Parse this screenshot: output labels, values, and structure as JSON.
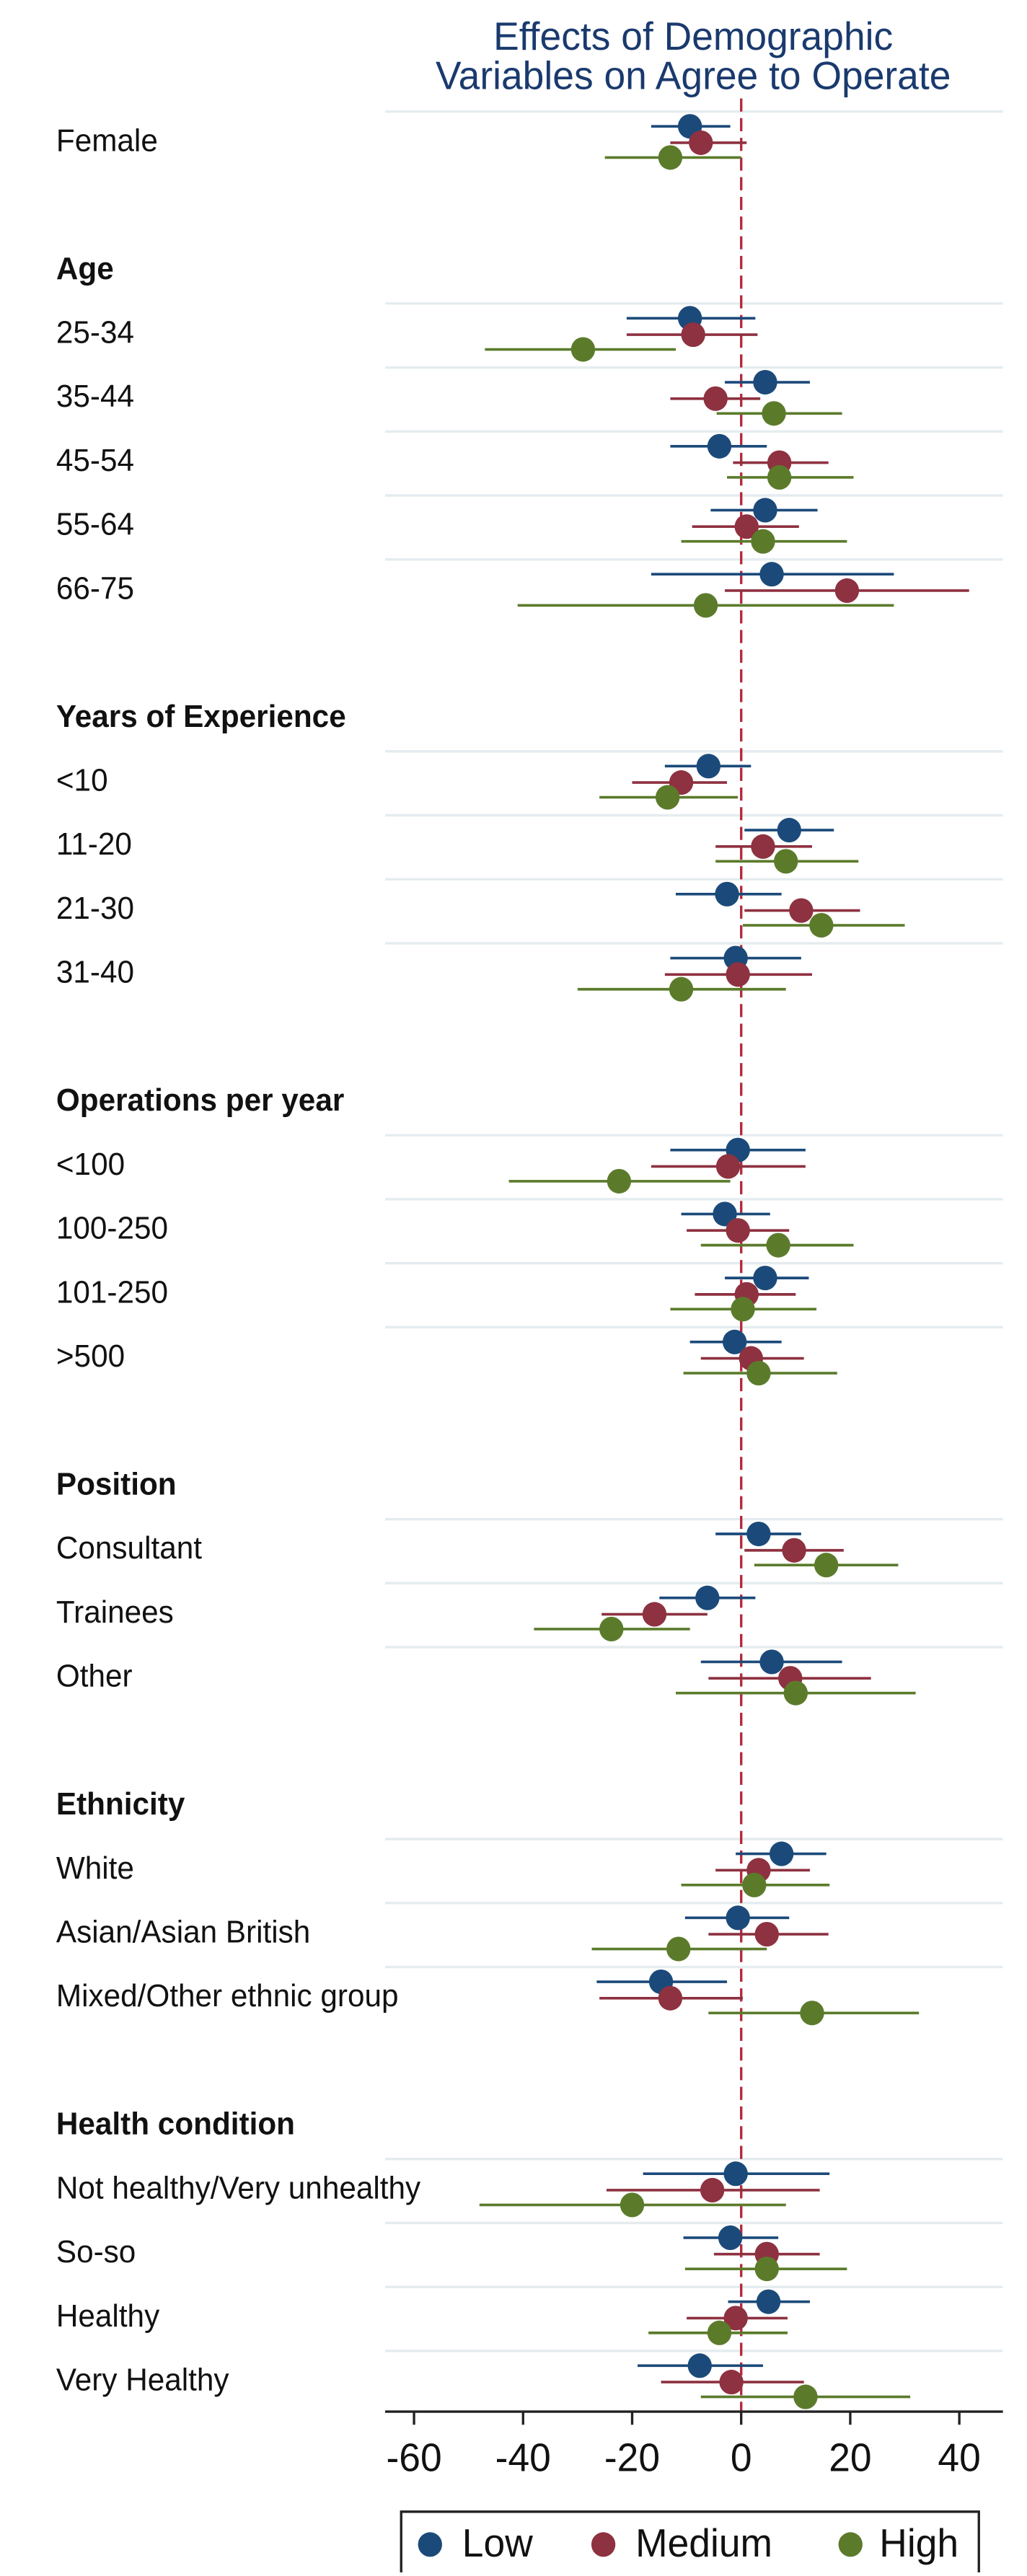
{
  "chart_data": {
    "type": "dot-errorbar",
    "title": [
      "Effects of Demographic",
      "Variables on Agree to Operate"
    ],
    "categories": [
      "Female",
      null,
      "Age",
      "25-34",
      "35-44",
      "45-54",
      "55-64",
      "66-75",
      null,
      "Years of Experience",
      "<10",
      "11-20",
      "21-30",
      "31-40",
      null,
      "Operations per year",
      "<100",
      "100-250",
      "101-250",
      ">500",
      null,
      "Position",
      "Consultant",
      "Trainees",
      "Other",
      null,
      "Ethnicity",
      "White",
      "Asian/Asian British",
      "Mixed/Other ethnic group",
      null,
      "Health condition",
      "Not healthy/Very unhealthy",
      "So-so",
      "Healthy",
      "Very Healthy"
    ],
    "series": [
      {
        "name": "Low",
        "color": "#1b4a7a",
        "values": [
          -9.4,
          null,
          null,
          -9.4,
          4.4,
          -4,
          4.4,
          5.6,
          null,
          null,
          -6,
          8.8,
          -2.6,
          -1,
          null,
          null,
          -0.6,
          -3,
          4.4,
          -1.2,
          null,
          null,
          3.2,
          -6.2,
          5.6,
          null,
          null,
          7.4,
          -0.6,
          -14.7,
          null,
          null,
          -1,
          -2,
          5,
          -7.6
        ],
        "lower": [
          -16.5,
          null,
          null,
          -21,
          -3,
          -13,
          -5.6,
          -16.5,
          null,
          null,
          -14,
          0.6,
          -12,
          -13,
          null,
          null,
          -13,
          -11,
          -3,
          -9.4,
          null,
          null,
          -4.7,
          -15,
          -7.4,
          null,
          null,
          -1,
          -10.3,
          -26.5,
          null,
          null,
          -18,
          -10.6,
          -2.4,
          -19
        ],
        "upper": [
          -2,
          null,
          null,
          2.6,
          12.6,
          4.7,
          14,
          28,
          null,
          null,
          1.8,
          17,
          7.4,
          11,
          null,
          null,
          11.8,
          5.3,
          12.4,
          7.4,
          null,
          null,
          11,
          2.6,
          18.5,
          null,
          null,
          15.6,
          8.8,
          -2.6,
          null,
          null,
          16.2,
          6.8,
          12.6,
          4
        ]
      },
      {
        "name": "Medium",
        "color": "#8e3140",
        "values": [
          -7.4,
          null,
          null,
          -8.8,
          -4.7,
          7,
          1,
          19.4,
          null,
          null,
          -11,
          4,
          11,
          -0.6,
          null,
          null,
          -2.4,
          -0.6,
          1,
          1.8,
          null,
          null,
          9.7,
          -15.9,
          9,
          null,
          null,
          3.2,
          4.7,
          -13,
          null,
          null,
          -5.3,
          4.7,
          -1,
          -1.8
        ],
        "lower": [
          -13,
          null,
          null,
          -21,
          -13,
          -1.5,
          -9,
          -3,
          null,
          null,
          -20,
          -4.7,
          0.6,
          -14,
          null,
          null,
          -16.5,
          -10,
          -8.5,
          -7.4,
          null,
          null,
          0.6,
          -25.6,
          -6,
          null,
          null,
          -4.7,
          -6,
          -26,
          null,
          null,
          -24.7,
          -5,
          -10,
          -14.7
        ],
        "upper": [
          1,
          null,
          null,
          3,
          3.5,
          16,
          10.6,
          41.8,
          null,
          null,
          -2.6,
          13,
          21.8,
          13,
          null,
          null,
          11.8,
          8.8,
          10,
          11.5,
          null,
          null,
          18.8,
          -6.2,
          23.8,
          null,
          null,
          12.6,
          16,
          0.3,
          null,
          null,
          14.4,
          14.4,
          8.5,
          11.5
        ]
      },
      {
        "name": "High",
        "color": "#5b7b2b",
        "values": [
          -13,
          null,
          null,
          -29,
          6,
          7,
          4,
          -6.5,
          null,
          null,
          -13.5,
          8.2,
          14.7,
          -11,
          null,
          null,
          -22.4,
          6.8,
          0.3,
          3.2,
          null,
          null,
          15.6,
          -23.8,
          10,
          null,
          null,
          2.4,
          -11.5,
          13,
          null,
          null,
          -20,
          4.7,
          -4,
          11.8
        ],
        "lower": [
          -25,
          null,
          null,
          -47,
          -4.5,
          -2.6,
          -11,
          -41,
          null,
          null,
          -26,
          -4.7,
          0.3,
          -30,
          null,
          null,
          -42.6,
          -7.4,
          -13,
          -10.6,
          null,
          null,
          2.4,
          -38,
          -12,
          null,
          null,
          -11,
          -27.4,
          -6,
          null,
          null,
          -48,
          -10.3,
          -17,
          -7.4
        ],
        "upper": [
          0,
          null,
          null,
          -12,
          18.5,
          20.6,
          19.4,
          28,
          null,
          null,
          -0.6,
          21.5,
          30,
          8.2,
          null,
          null,
          -2,
          20.6,
          13.8,
          17.6,
          null,
          null,
          28.8,
          -9.4,
          32,
          null,
          null,
          16.2,
          4.7,
          32.6,
          null,
          null,
          8.2,
          19.4,
          8.5,
          31
        ]
      }
    ],
    "xlim": [
      -65.3,
      48
    ],
    "xticks": [
      -60,
      -40,
      -20,
      0,
      20,
      40
    ],
    "reference_line": 0,
    "grid": true,
    "legend": "bottom"
  }
}
